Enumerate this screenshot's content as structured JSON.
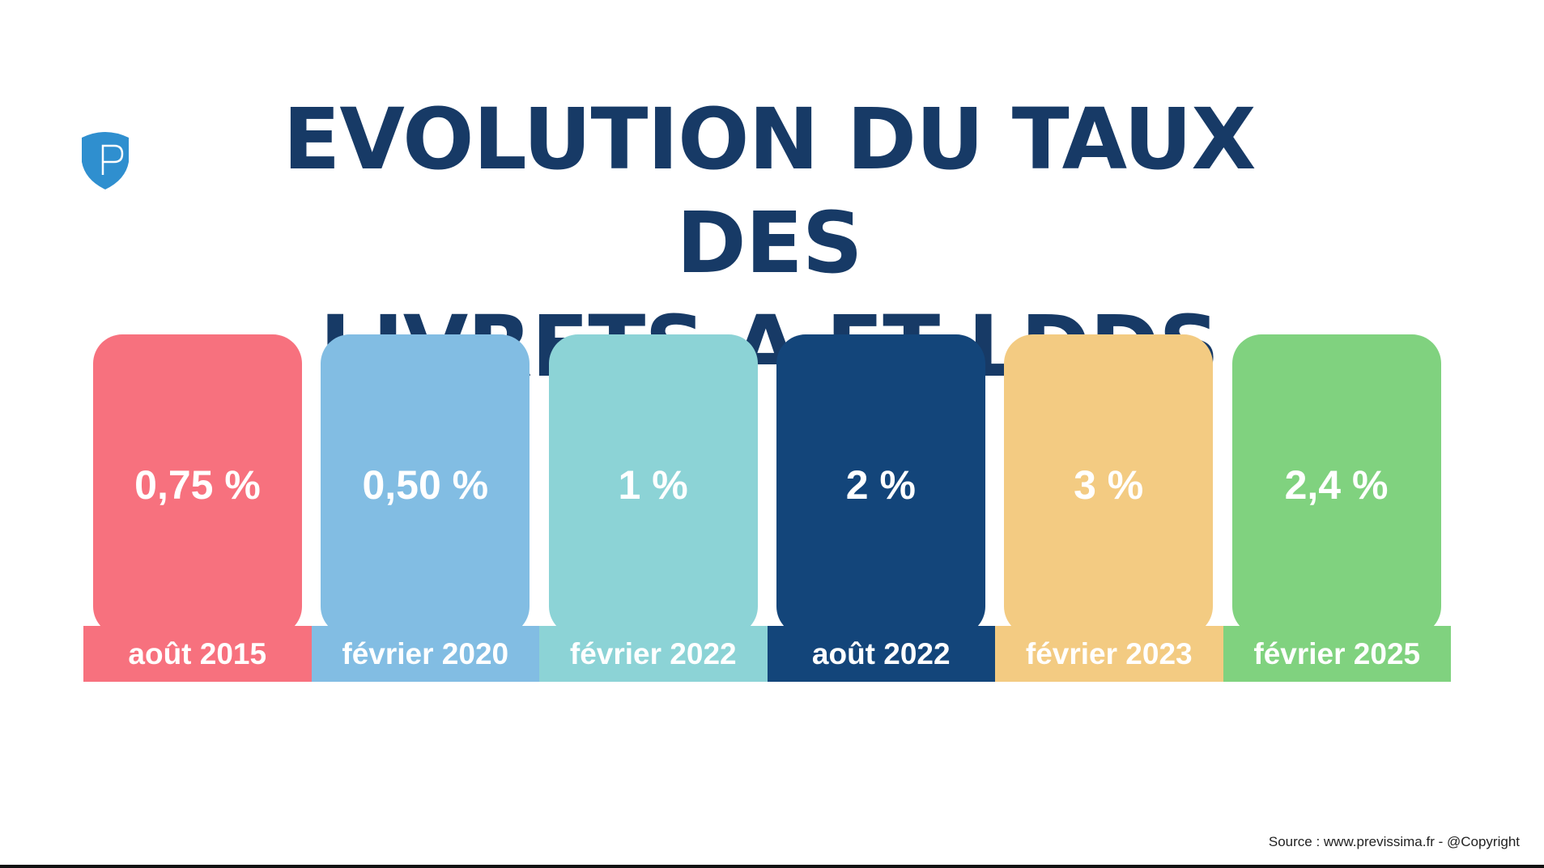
{
  "title": {
    "line1": "EVOLUTION DU TAUX DES",
    "line2": "LIVRETS A ET LDDS"
  },
  "logo": {
    "letter": "P",
    "color": "#2F8FCF",
    "icon": "shield-p-logo"
  },
  "rates": [
    {
      "value": "0,75 %",
      "date": "août 2015",
      "color": "#F7717E"
    },
    {
      "value": "0,50 %",
      "date": "février 2020",
      "color": "#82BDE3"
    },
    {
      "value": "1 %",
      "date": "février 2022",
      "color": "#8CD3D6"
    },
    {
      "value": "2 %",
      "date": "août 2022",
      "color": "#13457A"
    },
    {
      "value": "3 %",
      "date": "février 2023",
      "color": "#F3CB82"
    },
    {
      "value": "2,4 %",
      "date": "février 2025",
      "color": "#80D27F"
    }
  ],
  "source": "Source : www.previssima.fr - @Copyright"
}
